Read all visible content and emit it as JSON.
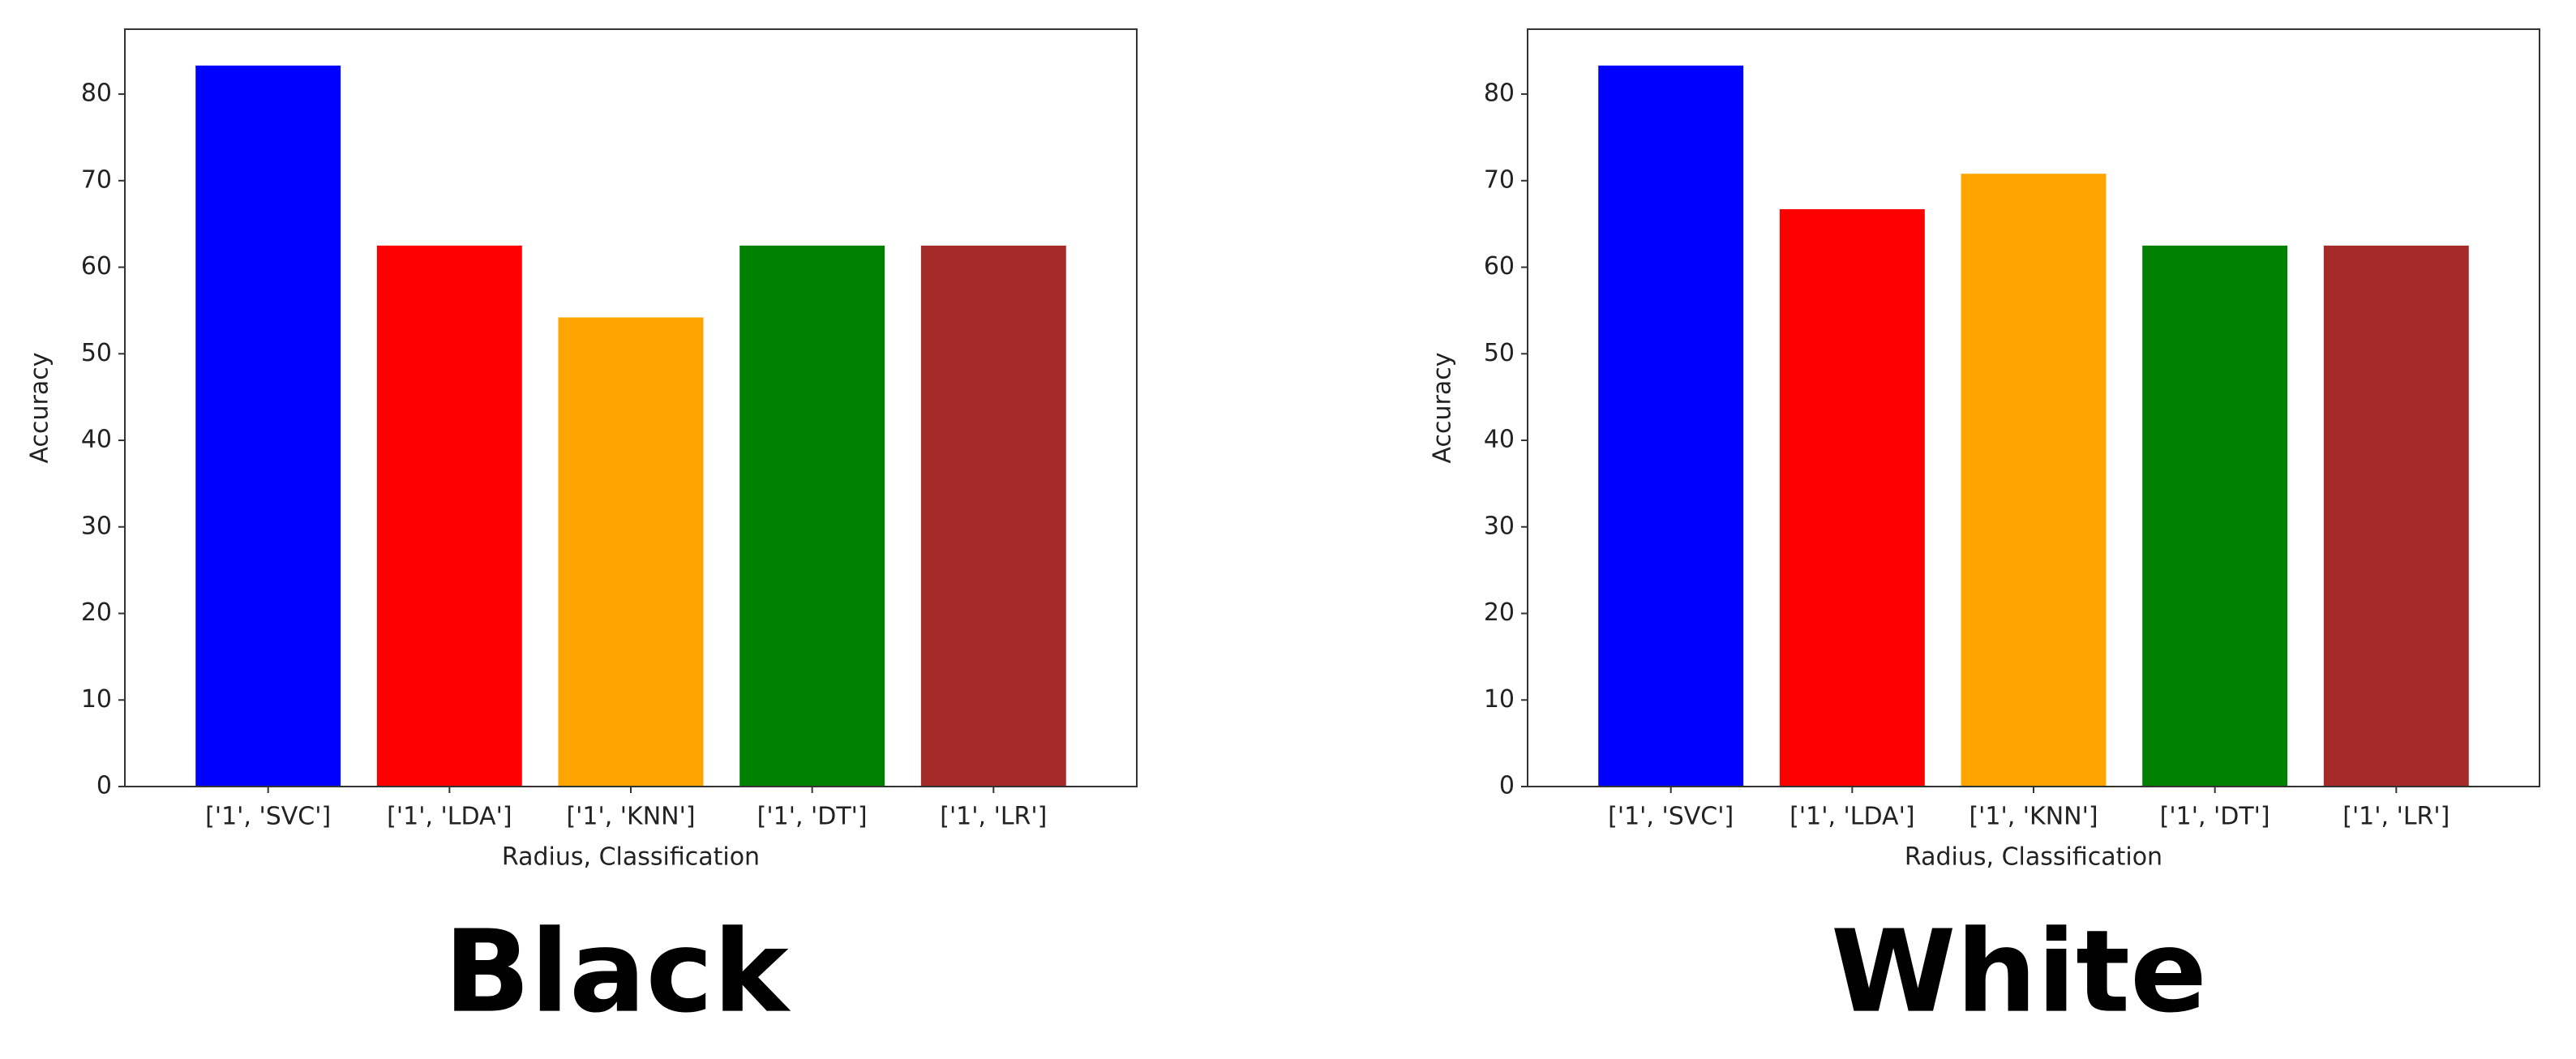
{
  "chart_data": [
    {
      "type": "bar",
      "title": "Black",
      "x_label": "Radius, Classification",
      "y_label": "Accuracy",
      "categories": [
        "['1', 'SVC']",
        "['1', 'LDA']",
        "['1', 'KNN']",
        "['1', 'DT']",
        "['1', 'LR']"
      ],
      "values": [
        83.3,
        62.5,
        54.2,
        62.5,
        62.5
      ],
      "colors": [
        "#0000ff",
        "#ff0000",
        "#ffa500",
        "#008000",
        "#a52a2a"
      ],
      "ylim": [
        0,
        87.5
      ],
      "yticks": [
        0,
        10,
        20,
        30,
        40,
        50,
        60,
        70,
        80
      ],
      "grid": false
    },
    {
      "type": "bar",
      "title": "White",
      "x_label": "Radius, Classification",
      "y_label": "Accuracy",
      "categories": [
        "['1', 'SVC']",
        "['1', 'LDA']",
        "['1', 'KNN']",
        "['1', 'DT']",
        "['1', 'LR']"
      ],
      "values": [
        83.3,
        66.7,
        70.8,
        62.5,
        62.5
      ],
      "colors": [
        "#0000ff",
        "#ff0000",
        "#ffa500",
        "#008000",
        "#a52a2a"
      ],
      "ylim": [
        0,
        87.5
      ],
      "yticks": [
        0,
        10,
        20,
        30,
        40,
        50,
        60,
        70,
        80
      ],
      "grid": false
    }
  ]
}
